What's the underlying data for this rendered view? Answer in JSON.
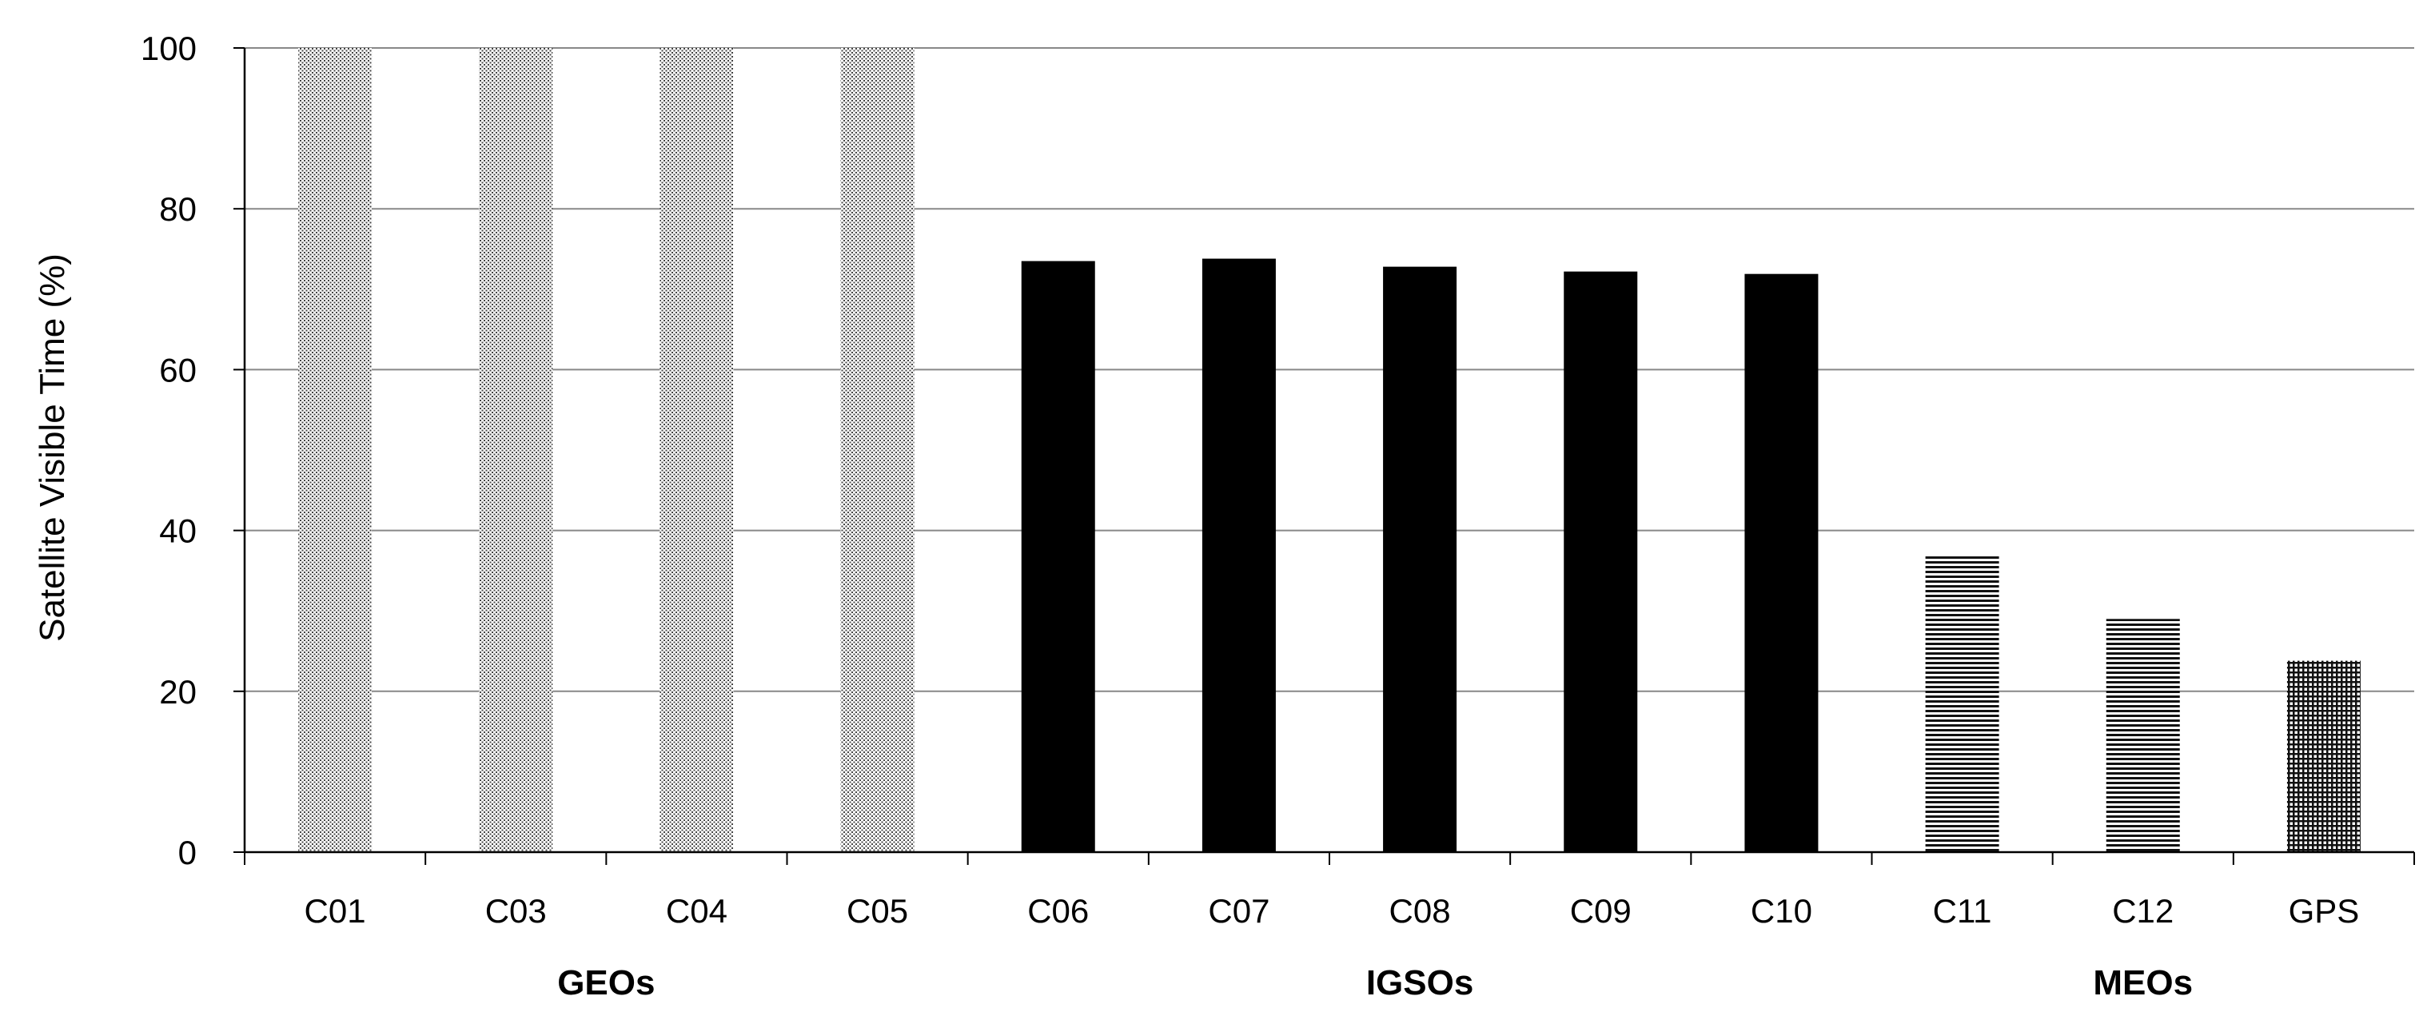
{
  "chart_data": {
    "type": "bar",
    "title": "",
    "xlabel": "",
    "ylabel": "Satellite Visible Time (%)",
    "ylim": [
      0,
      100
    ],
    "yticks": [
      0,
      20,
      40,
      60,
      80,
      100
    ],
    "grid": "horizontal",
    "legend": "none",
    "categories": [
      "C01",
      "C03",
      "C04",
      "C05",
      "C06",
      "C07",
      "C08",
      "C09",
      "C10",
      "C11",
      "C12",
      "GPS"
    ],
    "values": [
      100,
      100,
      100,
      100,
      73.5,
      73.8,
      72.8,
      72.2,
      71.9,
      37,
      29,
      23.8
    ],
    "groups": [
      {
        "label": "GEOs",
        "members": [
          "C01",
          "C03",
          "C04",
          "C05"
        ],
        "fill": "dotted"
      },
      {
        "label": "IGSOs",
        "members": [
          "C06",
          "C07",
          "C08",
          "C09",
          "C10"
        ],
        "fill": "solid"
      },
      {
        "label": "MEOs",
        "members": [
          "C11",
          "C12",
          "GPS"
        ],
        "fill": "hatched"
      }
    ],
    "bar_fills": [
      "dotted",
      "dotted",
      "dotted",
      "dotted",
      "solid",
      "solid",
      "solid",
      "solid",
      "solid",
      "horizontal-lines",
      "horizontal-lines",
      "crosshatch"
    ],
    "colors": {
      "bar": "#000000",
      "grid": "#888888",
      "axis": "#000000"
    }
  }
}
